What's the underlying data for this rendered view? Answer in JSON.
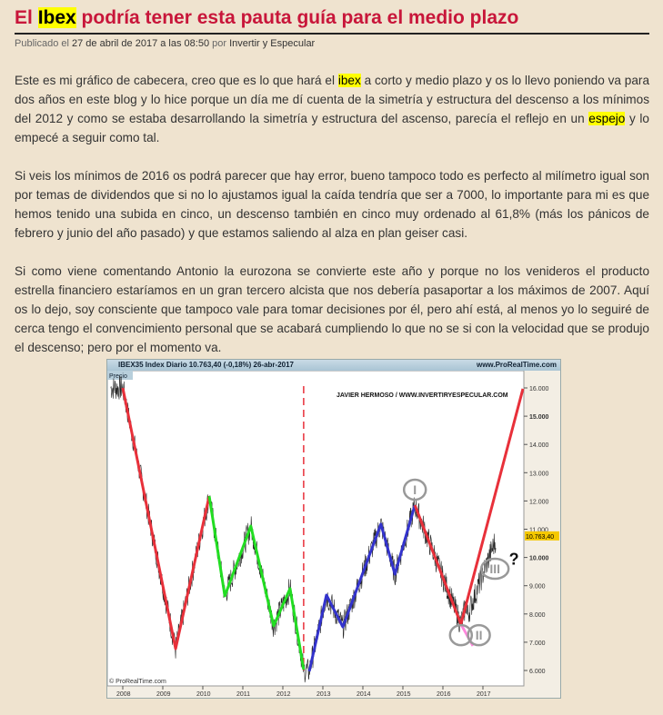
{
  "post": {
    "title_pre": "El ",
    "title_highlight": "Ibex",
    "title_post": " podría tener esta pauta guía para el medio plazo",
    "meta": {
      "published": "Publicado el ",
      "date": "27 de abril de 2017 a las 08:50",
      "by": " por ",
      "author": "Invertir y Especular"
    },
    "p1": {
      "a": "Este es mi gráfico de cabecera, creo que es lo que hará el ",
      "h1": "ibex",
      "b": "  a corto y medio plazo y os lo llevo poniendo va para dos años en este blog  y lo hice porque un día me dí cuenta de la simetría y estructura del descenso  a los mínimos del 2012 y como se estaba desarrollando la simetría y estructura del ascenso, parecía el reflejo en un ",
      "h2": "espejo",
      "c": " y lo empecé a seguir como tal."
    },
    "p2": "Si veis los mínimos de 2016 os podrá parecer que hay error, bueno tampoco todo es perfecto al milímetro igual son por temas de dividendos que si no lo ajustamos igual la caída tendría que ser a 7000, lo importante para mi es que hemos tenido una subida en cinco, un descenso también en cinco muy ordenado al 61,8% (más los pánicos de febrero y junio del año pasado) y que estamos saliendo al alza en plan geiser casi.",
    "p3": "Si como viene comentando Antonio la eurozona se convierte este año y porque no los venideros el producto estrella financiero estaríamos en un gran tercero alcista que nos debería pasaportar a los máximos de 2007. Aquí os lo dejo, soy consciente que tampoco vale para tomar decisiones por él, pero ahí está, al menos yo lo seguiré de cerca tengo el convencimiento personal que se acabará cumpliendo lo que no se si con la velocidad que se produjo el descenso; pero por el momento va."
  },
  "chart_data": {
    "type": "line",
    "header": "IBEX35 Index   Diario   10.763,40 (-0,18%)   26-abr-2017",
    "site": "www.ProRealTime.com",
    "panel_label": "Precio",
    "watermark": "JAVIER HERMOSO / WWW.INVERTIRYESPECULAR.COM",
    "copyright": "© ProRealTime.com",
    "last_price": "10.763,40",
    "last_price_value": 10763.4,
    "y_ticks": [
      "16.000",
      "15.000",
      "14.000",
      "13.000",
      "12.000",
      "11.000",
      "10.000",
      "9.000",
      "8.000",
      "7.000",
      "6.000"
    ],
    "x_ticks": [
      "2008",
      "2009",
      "2010",
      "2011",
      "2012",
      "2013",
      "2014",
      "2015",
      "2016",
      "2017"
    ],
    "ylim": [
      5500,
      16500
    ],
    "xlim": [
      2007.6,
      2018.1
    ],
    "vertical_marker_year": 2012.52,
    "waves": [
      {
        "color": "#e8303a",
        "points": [
          [
            2008.0,
            16000
          ],
          [
            2009.32,
            6770
          ],
          [
            2010.16,
            12170
          ]
        ]
      },
      {
        "color": "#22dd22",
        "points": [
          [
            2010.16,
            12170
          ],
          [
            2010.55,
            8640
          ],
          [
            2011.2,
            11110
          ],
          [
            2011.77,
            7580
          ],
          [
            2012.18,
            8900
          ],
          [
            2012.52,
            6030
          ]
        ]
      },
      {
        "color": "#3333cc",
        "points": [
          [
            2012.66,
            5970
          ],
          [
            2013.09,
            8670
          ],
          [
            2013.5,
            7540
          ],
          [
            2014.45,
            11180
          ],
          [
            2014.8,
            9410
          ],
          [
            2015.3,
            11850
          ]
        ]
      },
      {
        "color": "#e8303a",
        "points": [
          [
            2015.3,
            11850
          ],
          [
            2016.45,
            7640
          ]
        ]
      },
      {
        "color": "#ff88dd",
        "points": [
          [
            2016.45,
            7640
          ],
          [
            2016.75,
            6870
          ]
        ]
      },
      {
        "color": "#e8303a",
        "points": [
          [
            2016.45,
            7640
          ],
          [
            2018.0,
            15970
          ]
        ]
      }
    ],
    "wave_labels": [
      {
        "text": "I",
        "x": 2015.3,
        "y": 12400
      },
      {
        "text": "II",
        "x": 2016.9,
        "y": 7250
      },
      {
        "text": "III",
        "x": 2017.3,
        "y": 9600
      },
      {
        "text": "",
        "x": 2016.45,
        "y": 7250
      }
    ],
    "question_mark": "?"
  }
}
